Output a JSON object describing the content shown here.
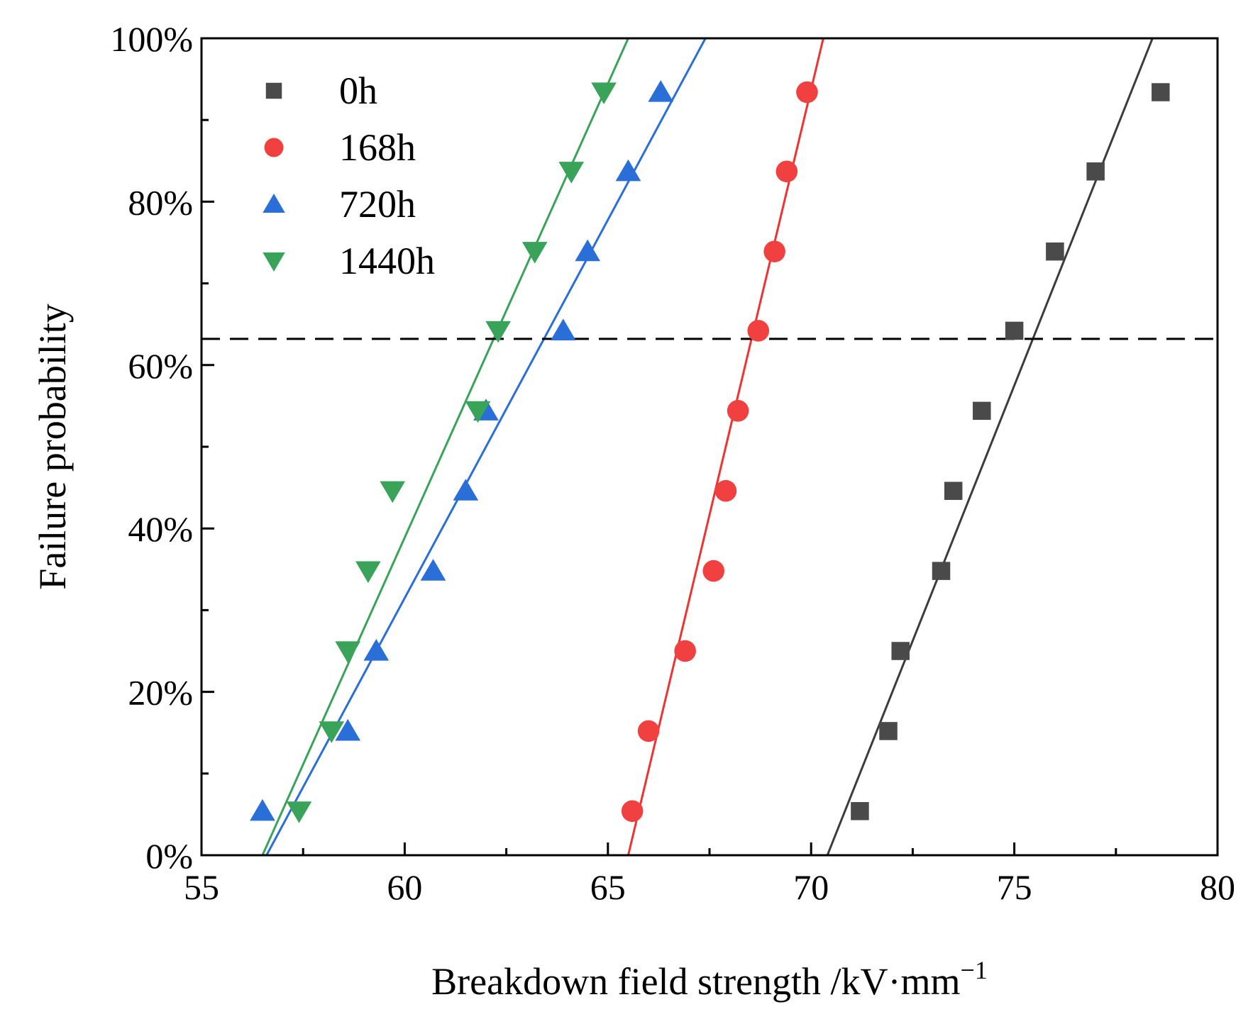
{
  "chart_data": {
    "type": "scatter",
    "title": "",
    "xlabel": "Breakdown field strength /kV·mm",
    "xlabel_superscript": "−1",
    "ylabel": "Failure probability",
    "xlim": [
      55,
      80
    ],
    "ylim": [
      0,
      100
    ],
    "xticks": [
      55,
      60,
      65,
      70,
      75,
      80
    ],
    "yticks": [
      0,
      20,
      40,
      60,
      80,
      100
    ],
    "ytick_labels": [
      "0%",
      "20%",
      "40%",
      "60%",
      "80%",
      "100%"
    ],
    "reference_line_y": 63.2,
    "legend_position": "top-left",
    "series": [
      {
        "name": "0h",
        "marker": "square",
        "color": "#4a4a4a",
        "line_color": "#3c3c3c",
        "x": [
          71.2,
          71.9,
          72.2,
          73.2,
          73.5,
          74.2,
          75.0,
          76.0,
          77.0,
          78.6
        ],
        "y": [
          5.4,
          15.2,
          25.0,
          34.8,
          44.6,
          54.4,
          64.2,
          73.9,
          83.7,
          93.4
        ],
        "fit": {
          "x0": 70.4,
          "x1": 78.4
        }
      },
      {
        "name": "168h",
        "marker": "circle",
        "color": "#f04040",
        "line_color": "#ee3333",
        "x": [
          65.6,
          66.0,
          66.9,
          67.6,
          67.9,
          68.2,
          68.7,
          69.1,
          69.4,
          69.9
        ],
        "y": [
          5.4,
          15.2,
          25.0,
          34.8,
          44.6,
          54.4,
          64.2,
          73.9,
          83.7,
          93.4
        ],
        "fit": {
          "x0": 65.5,
          "x1": 70.3
        }
      },
      {
        "name": "720h",
        "marker": "triangle-up",
        "color": "#2a6fd8",
        "line_color": "#2a6fd8",
        "x": [
          56.5,
          58.6,
          59.3,
          60.7,
          61.5,
          62.0,
          63.9,
          64.5,
          65.5,
          66.3
        ],
        "y": [
          5.4,
          15.2,
          25.0,
          34.8,
          44.6,
          54.4,
          64.2,
          73.9,
          83.7,
          93.4
        ],
        "fit": {
          "x0": 56.6,
          "x1": 67.4
        }
      },
      {
        "name": "1440h",
        "marker": "triangle-down",
        "color": "#3aa35a",
        "line_color": "#3aa35a",
        "x": [
          57.4,
          58.2,
          58.6,
          59.1,
          59.7,
          61.8,
          62.3,
          63.2,
          64.1,
          64.9
        ],
        "y": [
          5.4,
          15.2,
          25.0,
          34.8,
          44.6,
          54.4,
          64.2,
          73.9,
          83.7,
          93.4
        ],
        "fit": {
          "x0": 56.5,
          "x1": 65.5
        }
      }
    ]
  }
}
